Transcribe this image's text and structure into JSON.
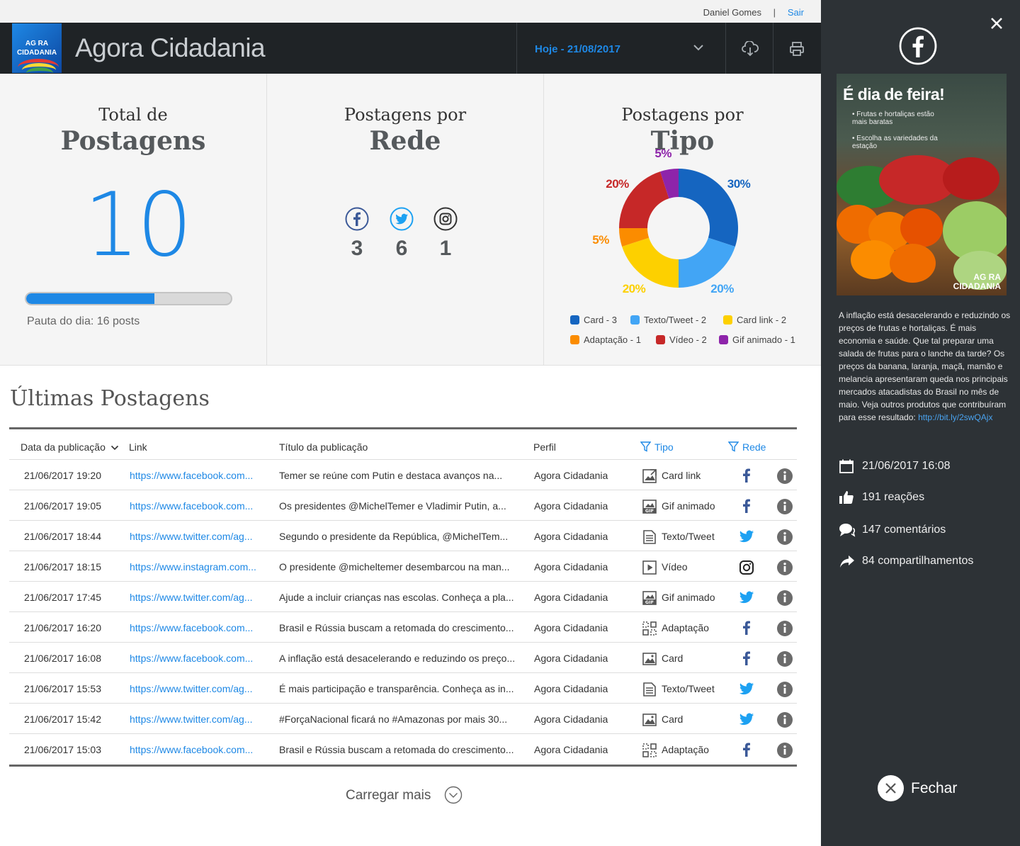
{
  "userbar": {
    "user_name": "Daniel Gomes",
    "separator": "|",
    "logout_label": "Sair"
  },
  "header": {
    "logo_line1": "AG  RA",
    "logo_line2": "CIDADANIA",
    "brand": "Agora Cidadania",
    "date_label": "Hoje - 21/08/2017",
    "download_icon": "cloud-download-icon",
    "print_icon": "print-icon"
  },
  "stats": {
    "total": {
      "title_top": "Total de",
      "title_main": "Postagens",
      "count": "10",
      "progress_fraction": 0.625,
      "pauta_label": "Pauta do dia: 16 posts"
    },
    "by_network": {
      "title_top": "Postagens por",
      "title_main": "Rede",
      "networks": [
        {
          "icon": "facebook-icon",
          "count": "3",
          "color": "#3b5998"
        },
        {
          "icon": "twitter-icon",
          "count": "6",
          "color": "#1da1f2"
        },
        {
          "icon": "instagram-icon",
          "count": "1",
          "color": "#333333"
        }
      ]
    },
    "by_type": {
      "title_top": "Postagens por",
      "title_main": "Tipo"
    }
  },
  "chart_data": {
    "type": "pie",
    "categories": [
      "Card",
      "Texto/Tweet",
      "Card link",
      "Adaptação",
      "Vídeo",
      "Gif animado"
    ],
    "values": [
      30,
      20,
      20,
      5,
      20,
      5
    ],
    "counts": [
      3,
      2,
      2,
      1,
      2,
      1
    ],
    "data_labels": [
      "30%",
      "20%",
      "20%",
      "5%",
      "20%",
      "5%"
    ],
    "legend": [
      "Card - 3",
      "Texto/Tweet - 2",
      "Card link - 2",
      "Adaptação - 1",
      "Vídeo - 2",
      "Gif animado - 1"
    ],
    "colors": [
      "#1565c0",
      "#42a5f5",
      "#fdd000",
      "#fb8c00",
      "#c62828",
      "#8e24aa"
    ],
    "legend_placement": "bottom",
    "donut": true
  },
  "latest": {
    "title": "Últimas Postagens",
    "columns": {
      "date": "Data da publicação",
      "link": "Link",
      "title": "Título da publicação",
      "profile": "Perfil",
      "type": "Tipo",
      "network": "Rede"
    },
    "rows": [
      {
        "date": "21/06/2017 19:20",
        "link": "https://www.facebook.com...",
        "title": "Temer se reúne com Putin e destaca avanços na...",
        "profile": "Agora Cidadania",
        "type": "Card link",
        "type_icon": "card-link-icon",
        "network": "facebook"
      },
      {
        "date": "21/06/2017 19:05",
        "link": "https://www.facebook.com...",
        "title": "Os presidentes @MichelTemer e Vladimir Putin, a...",
        "profile": "Agora Cidadania",
        "type": "Gif animado",
        "type_icon": "gif-icon",
        "network": "facebook"
      },
      {
        "date": "21/06/2017 18:44",
        "link": "https://www.twitter.com/ag...",
        "title": "Segundo o presidente da República, @MichelTem...",
        "profile": "Agora Cidadania",
        "type": "Texto/Tweet",
        "type_icon": "text-icon",
        "network": "twitter"
      },
      {
        "date": "21/06/2017 18:15",
        "link": "https://www.instagram.com...",
        "title": "O presidente @micheltemer desembarcou na man...",
        "profile": "Agora Cidadania",
        "type": "Vídeo",
        "type_icon": "video-icon",
        "network": "instagram"
      },
      {
        "date": "21/06/2017 17:45",
        "link": "https://www.twitter.com/ag...",
        "title": "Ajude a incluir crianças nas escolas. Conheça a pla...",
        "profile": "Agora Cidadania",
        "type": "Gif animado",
        "type_icon": "gif-icon",
        "network": "twitter"
      },
      {
        "date": "21/06/2017 16:20",
        "link": "https://www.facebook.com...",
        "title": "Brasil e Rússia buscam a retomada do crescimento...",
        "profile": "Agora Cidadania",
        "type": "Adaptação",
        "type_icon": "adaptation-icon",
        "network": "facebook"
      },
      {
        "date": "21/06/2017 16:08",
        "link": "https://www.facebook.com...",
        "title": "A inflação está desacelerando e reduzindo os preço...",
        "profile": "Agora Cidadania",
        "type": "Card",
        "type_icon": "image-icon",
        "network": "facebook"
      },
      {
        "date": "21/06/2017 15:53",
        "link": "https://www.twitter.com/ag...",
        "title": "É mais participação e transparência. Conheça as in...",
        "profile": "Agora Cidadania",
        "type": "Texto/Tweet",
        "type_icon": "text-icon",
        "network": "twitter"
      },
      {
        "date": "21/06/2017 15:42",
        "link": "https://www.twitter.com/ag...",
        "title": "#ForçaNacional ficará no #Amazonas por mais 30...",
        "profile": "Agora Cidadania",
        "type": "Card",
        "type_icon": "image-icon",
        "network": "twitter"
      },
      {
        "date": "21/06/2017 15:03",
        "link": "https://www.facebook.com...",
        "title": "Brasil e Rússia buscam a retomada do crescimento...",
        "profile": "Agora Cidadania",
        "type": "Adaptação",
        "type_icon": "adaptation-icon",
        "network": "facebook"
      }
    ],
    "load_more": "Carregar mais"
  },
  "side": {
    "network_icon": "facebook-icon",
    "image": {
      "headline": "É dia de feira!",
      "bullet1": "• Frutas e hortaliças estão mais baratas",
      "bullet2": "• Escolha as variedades da estação",
      "watermark1": "AG  RA",
      "watermark2": "CIDADANIA"
    },
    "description": "A inflação está desacelerando e reduzindo os preços de frutas e hortaliças. É mais economia e saúde. Que tal preparar uma salada de frutas para o lanche da tarde? Os preços da banana, laranja, maçã, mamão e melancia apresentaram queda nos principais mercados atacadistas do Brasil no mês de maio. Veja outros produtos que contribuíram para esse resultado: ",
    "description_link": "http://bit.ly/2swQAjx",
    "date": "21/06/2017 16:08",
    "reactions": "191 reações",
    "comments": "147 comentários",
    "shares": "84 compartilhamentos",
    "close_label": "Fechar"
  }
}
